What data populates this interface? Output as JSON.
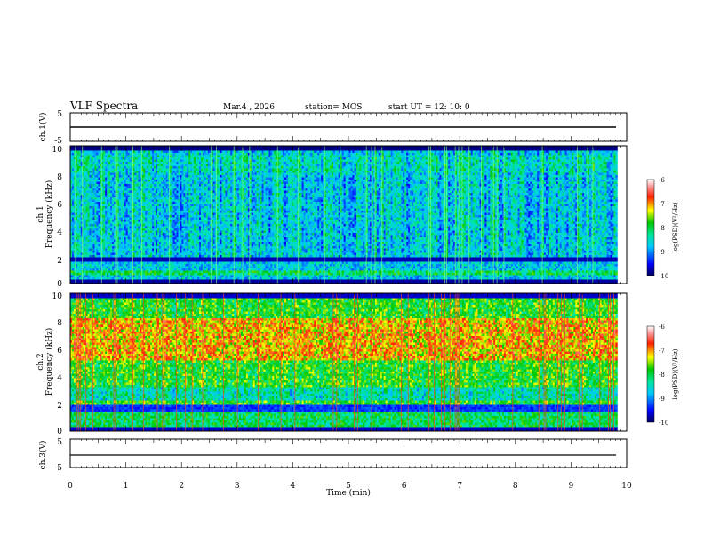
{
  "chart_data": [
    {
      "type": "line",
      "header": {
        "title": "VLF Spectra",
        "date": "Mar.4  , 2026",
        "station": "station= MOS",
        "start": "start  UT =   12: 10: 0"
      },
      "ylabel": "ch.1(V)",
      "ylim": [
        -5,
        5
      ],
      "y_ticks": [
        "5",
        "-5"
      ],
      "xlim": [
        0,
        10
      ],
      "series": [
        {
          "values_note": "flat trace",
          "x": [
            0,
            9.83
          ],
          "y": [
            0,
            0
          ]
        }
      ]
    },
    {
      "type": "heatmap",
      "channel_label": "ch.1",
      "ylabel": "Frequency (kHz)",
      "ylim": [
        0,
        10
      ],
      "y_ticks": [
        "0",
        "2",
        "4",
        "6",
        "8",
        "10"
      ],
      "xlim": [
        0,
        10
      ],
      "data_end_min": 9.83,
      "colorbar": {
        "label": "log(PSD)(V²/Hz)",
        "ticks": [
          "-6",
          "-7",
          "-8",
          "-9",
          "-10"
        ],
        "range": [
          -10,
          -6
        ]
      }
    },
    {
      "type": "heatmap",
      "channel_label": "ch.2",
      "ylabel": "Frequency (kHz)",
      "ylim": [
        0,
        10
      ],
      "y_ticks": [
        "0",
        "2",
        "4",
        "6",
        "8",
        "10"
      ],
      "xlim": [
        0,
        10
      ],
      "data_end_min": 9.83,
      "colorbar": {
        "label": "log(PSD)(V²/Hz)",
        "ticks": [
          "-6",
          "-7",
          "-8",
          "-9",
          "-10"
        ],
        "range": [
          -10,
          -6
        ]
      }
    },
    {
      "type": "line",
      "ylabel": "ch.3(V)",
      "ylim": [
        -5,
        5
      ],
      "y_ticks": [
        "5",
        "-5"
      ],
      "xlim": [
        0,
        10
      ],
      "xlabel": "Time (min)",
      "x_ticks": [
        "0",
        "1",
        "2",
        "3",
        "4",
        "5",
        "6",
        "7",
        "8",
        "9",
        "10"
      ],
      "series": [
        {
          "values_note": "flat trace",
          "x": [
            0,
            9.83
          ],
          "y": [
            0,
            0
          ]
        }
      ]
    }
  ]
}
